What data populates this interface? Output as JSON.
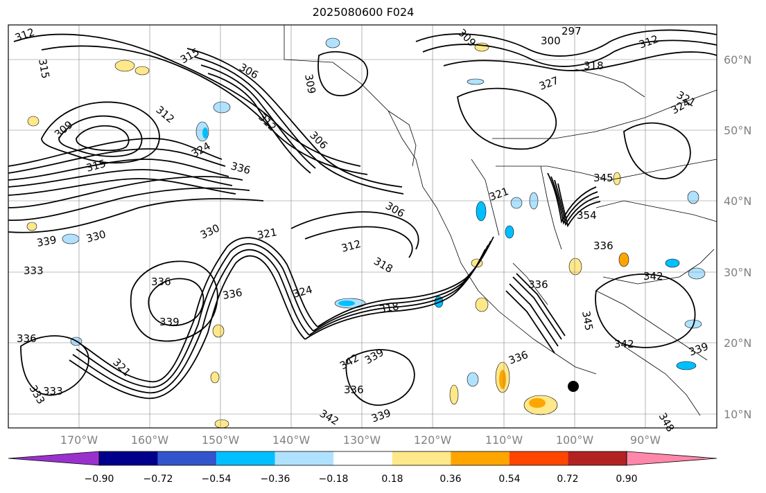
{
  "title": "2025080600 F024",
  "lat_labels": [
    "60°N",
    "50°N",
    "40°N",
    "30°N",
    "20°N",
    "10°N"
  ],
  "lon_labels": [
    "170°W",
    "160°W",
    "150°W",
    "140°W",
    "130°W",
    "120°W",
    "110°W",
    "100°W",
    "90°W"
  ],
  "colorbar": {
    "ticks": [
      "−0.90",
      "−0.72",
      "−0.54",
      "−0.36",
      "−0.18",
      "0.18",
      "0.36",
      "0.54",
      "0.72",
      "0.90"
    ],
    "colors": [
      "#9932cc",
      "#00008b",
      "#3355cc",
      "#00bfff",
      "#b0e2ff",
      "#ffffff",
      "#ffe88a",
      "#ffa500",
      "#ff4500",
      "#b22222",
      "#ff88aa"
    ]
  },
  "contour_labels": [
    "312",
    "315",
    "309",
    "312",
    "306",
    "309",
    "315",
    "306",
    "312",
    "324",
    "306",
    "336",
    "333",
    "315",
    "330",
    "339",
    "333",
    "330",
    "321",
    "312",
    "318",
    "336",
    "324",
    "336",
    "339",
    "318",
    "336",
    "342",
    "339",
    "342",
    "339",
    "336",
    "321",
    "333",
    "309",
    "297",
    "300",
    "312",
    "318",
    "321",
    "324",
    "321",
    "327",
    "345",
    "354",
    "336",
    "336",
    "345",
    "342",
    "339",
    "342",
    "348",
    "336"
  ]
}
